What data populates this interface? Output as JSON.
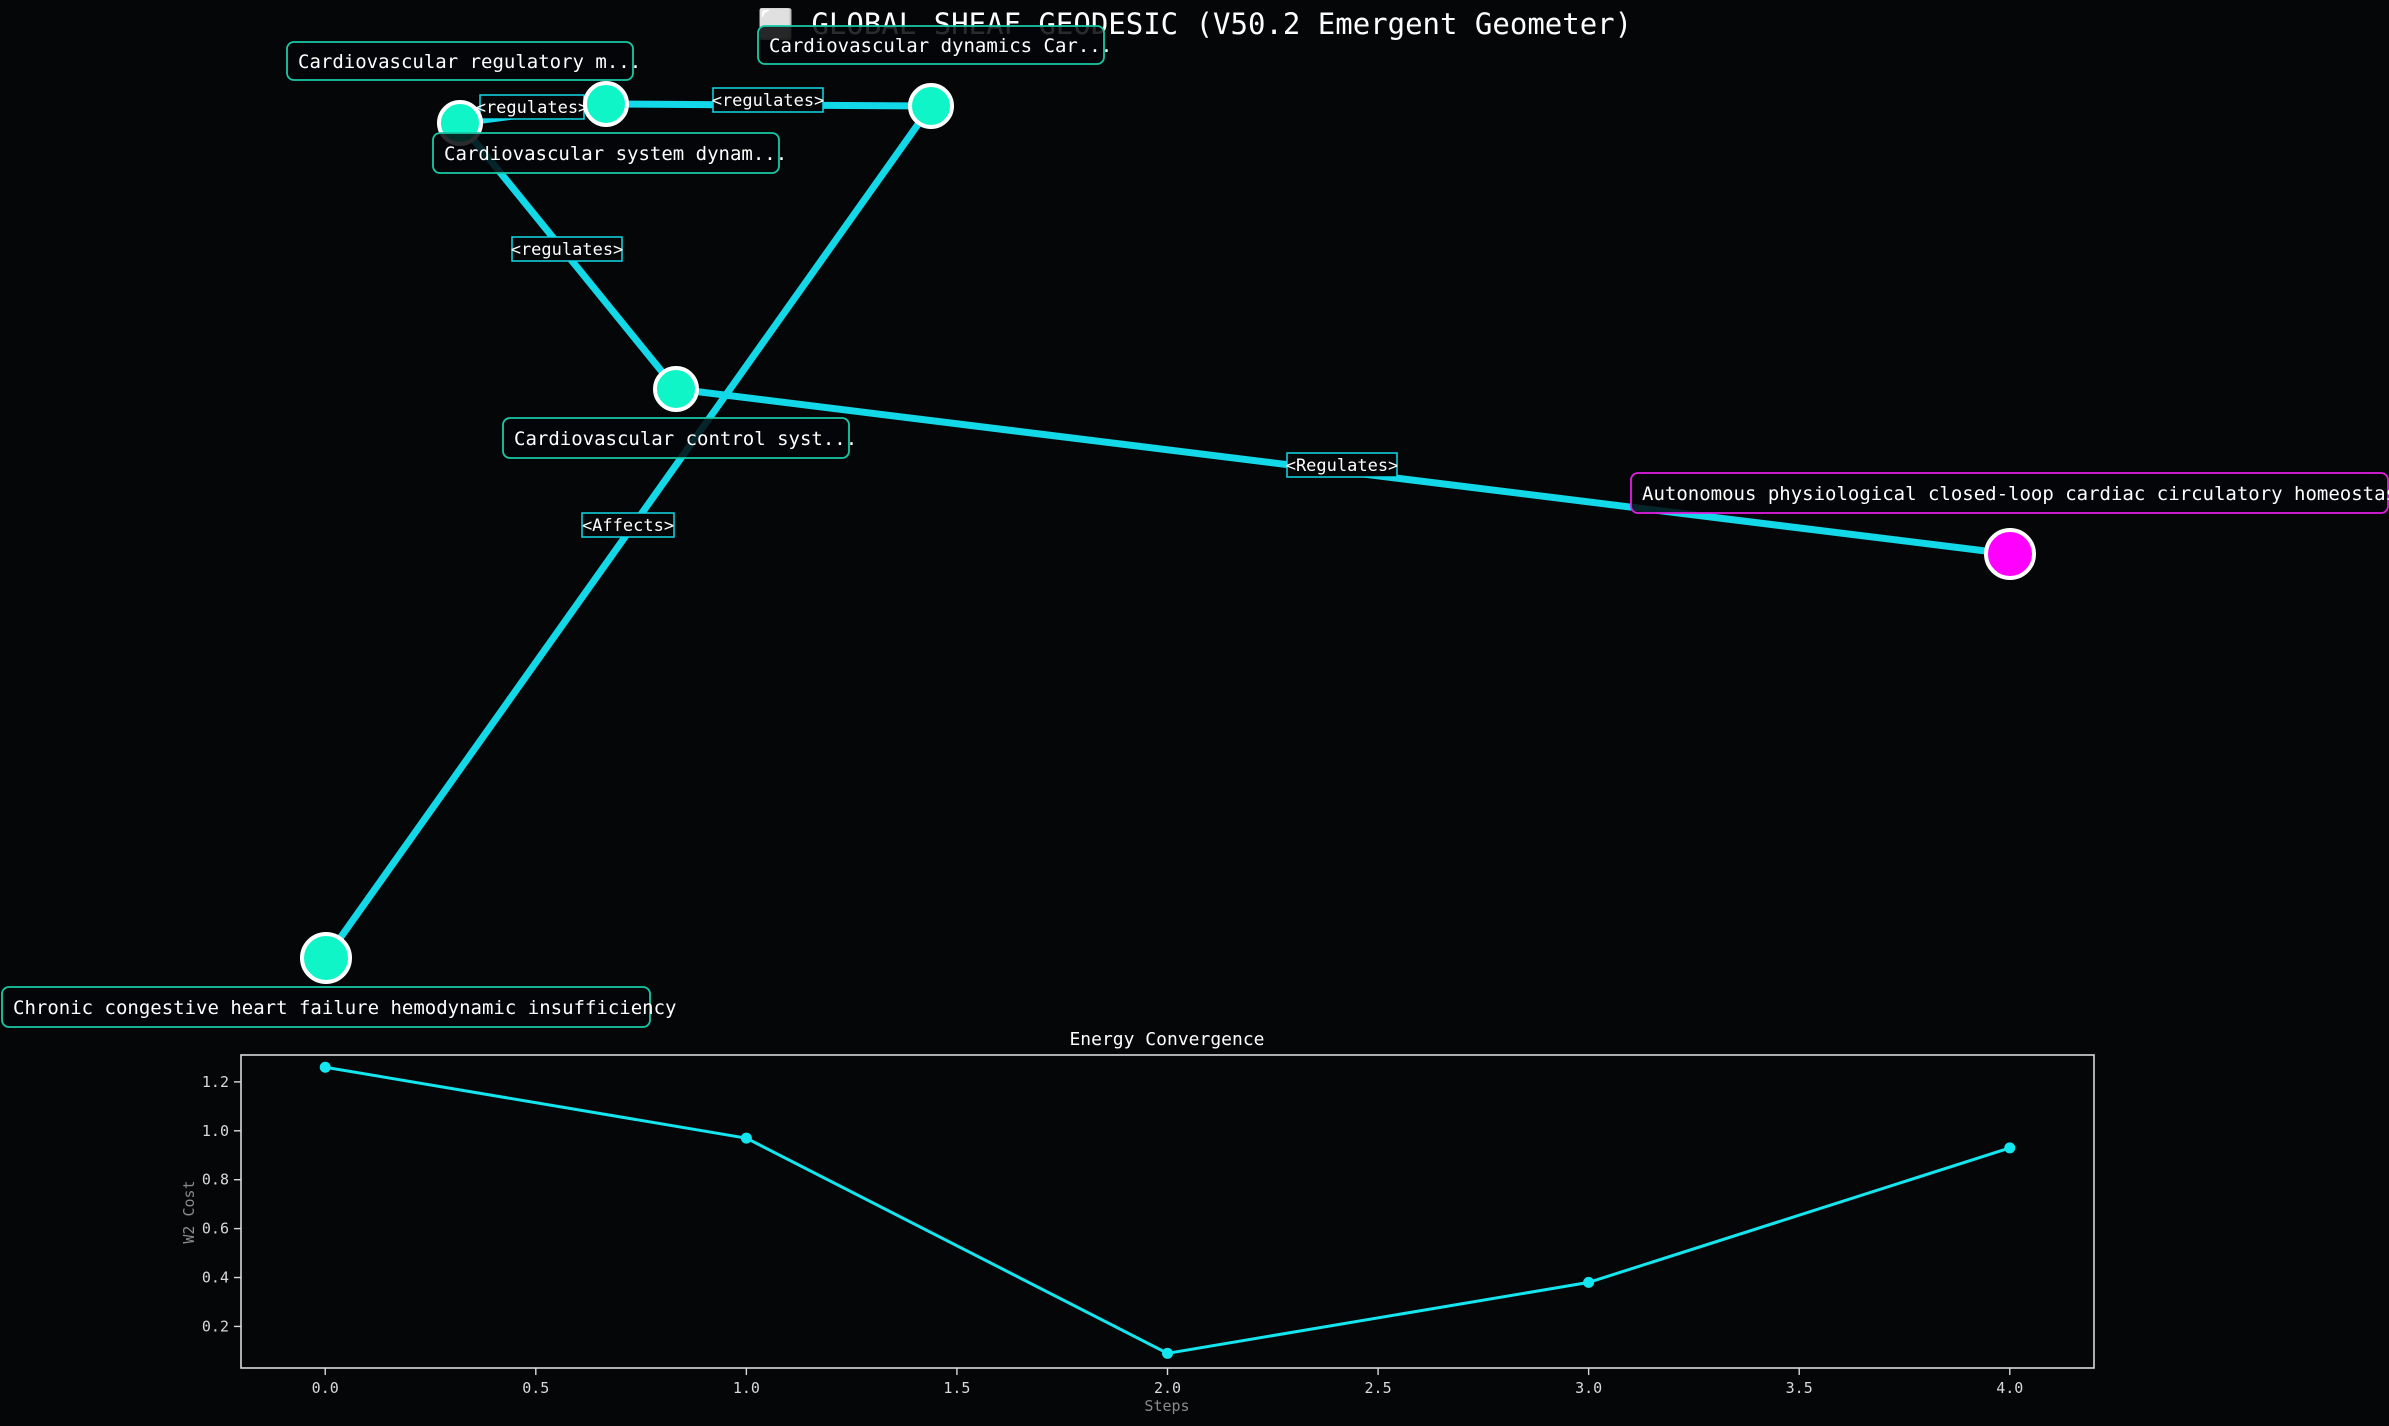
{
  "title": "⬜ GLOBAL SHEAF GEODESIC (V50.2 Emergent Geometer)",
  "colors": {
    "background": "#050608",
    "node": "#10f5c8",
    "target_node": "#ff00ff",
    "edge": "#12d8e8",
    "label_border": "#19c9a6",
    "target_label_border": "#e31ee3",
    "plot_line": "#14e6f0",
    "axis": "#d9d9d9"
  },
  "graph": {
    "nodes": [
      {
        "id": "n1",
        "label": "Cardiovascular regulatory m...",
        "target": false
      },
      {
        "id": "n2",
        "label": "Cardiovascular dynamics Car...",
        "target": false
      },
      {
        "id": "n3",
        "label": "Cardiovascular system dynam...",
        "target": false
      },
      {
        "id": "n4",
        "label": "Cardiovascular control syst...",
        "target": false
      },
      {
        "id": "n5",
        "label": "Autonomous physiological closed-loop cardiac circulatory homeostasis",
        "target": true
      },
      {
        "id": "n6",
        "label": "Chronic congestive heart failure hemodynamic insufficiency",
        "target": false
      },
      {
        "id": "n7",
        "label": "",
        "target": false
      }
    ],
    "edges": [
      {
        "from": "n1",
        "to": "n7",
        "label": "<regulates>"
      },
      {
        "from": "n7",
        "to": "n2",
        "label": "<regulates>"
      },
      {
        "from": "n1",
        "to": "n4",
        "label": "<regulates>"
      },
      {
        "from": "n4",
        "to": "n5",
        "label": "<Regulates>"
      },
      {
        "from": "n6",
        "to": "n2",
        "label": "<Affects>"
      }
    ]
  },
  "chart_data": {
    "type": "line",
    "title": "Energy Convergence",
    "xlabel": "Steps",
    "ylabel": "W2 Cost",
    "x": [
      0,
      1,
      2,
      3,
      4
    ],
    "values": [
      1.26,
      0.97,
      0.09,
      0.38,
      0.93
    ],
    "xlim": [
      -0.2,
      4.2
    ],
    "ylim": [
      0.03,
      1.31
    ],
    "xticks": [
      "0.0",
      "0.5",
      "1.0",
      "1.5",
      "2.0",
      "2.5",
      "3.0",
      "3.5",
      "4.0"
    ],
    "yticks": [
      "0.2",
      "0.4",
      "0.6",
      "0.8",
      "1.0",
      "1.2"
    ],
    "grid": false,
    "legend": "none"
  }
}
